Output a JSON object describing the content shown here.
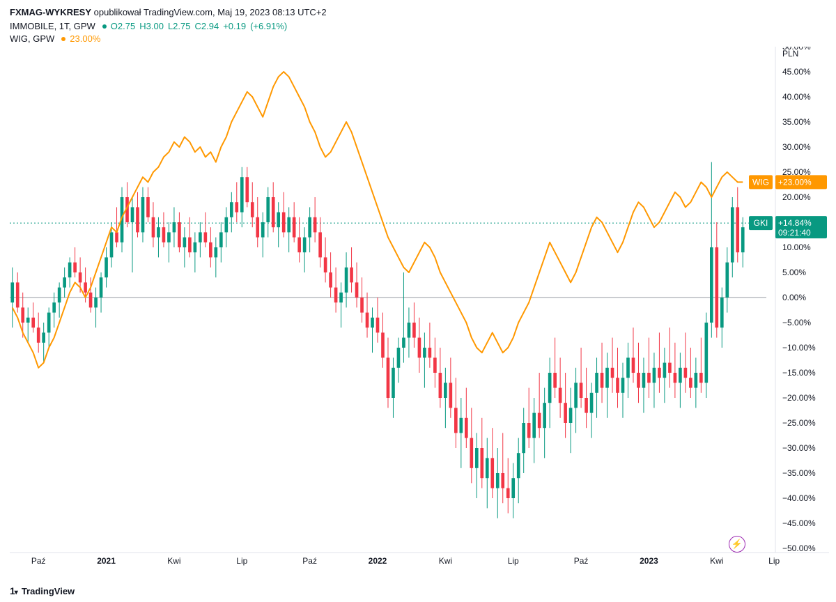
{
  "header": {
    "source": "FXMAG-WYKRESY",
    "published_label": "opublikował",
    "platform": "TradingView.com",
    "date": "Maj 19, 2023 08:13 UTC+2"
  },
  "legend": {
    "main": {
      "symbol": "IMMOBILE, 1T, GPW",
      "o_label": "O",
      "o": "2.75",
      "h_label": "H",
      "h": "3.00",
      "l_label": "L",
      "l": "2.75",
      "c_label": "C",
      "c": "2.94",
      "change": "+0.19",
      "change_pct": "(+6.91%)",
      "dot_color": "#089981"
    },
    "wig": {
      "symbol": "WIG, GPW",
      "value": "23.00%",
      "dot_color": "#ff9800"
    }
  },
  "y_axis": {
    "unit_label": "PLN",
    "min": -50,
    "max": 50,
    "step": 5,
    "ticks": [
      {
        "v": 50,
        "l": "50.00%"
      },
      {
        "v": 45,
        "l": "45.00%"
      },
      {
        "v": 40,
        "l": "40.00%"
      },
      {
        "v": 35,
        "l": "35.00%"
      },
      {
        "v": 30,
        "l": "30.00%"
      },
      {
        "v": 25,
        "l": "25.00%"
      },
      {
        "v": 20,
        "l": "20.00%"
      },
      {
        "v": 15,
        "l": "15.00%"
      },
      {
        "v": 10,
        "l": "10.00%"
      },
      {
        "v": 5,
        "l": "5.00%"
      },
      {
        "v": 0,
        "l": "0.00%"
      },
      {
        "v": -5,
        "l": "−5.00%"
      },
      {
        "v": -10,
        "l": "−10.00%"
      },
      {
        "v": -15,
        "l": "−15.00%"
      },
      {
        "v": -20,
        "l": "−20.00%"
      },
      {
        "v": -25,
        "l": "−25.00%"
      },
      {
        "v": -30,
        "l": "−30.00%"
      },
      {
        "v": -35,
        "l": "−35.00%"
      },
      {
        "v": -40,
        "l": "−40.00%"
      },
      {
        "v": -45,
        "l": "−45.00%"
      },
      {
        "v": -50,
        "l": "−50.00%"
      }
    ]
  },
  "x_axis": {
    "labels": [
      {
        "i": 5,
        "l": "Paź",
        "bold": false
      },
      {
        "i": 18,
        "l": "2021",
        "bold": true
      },
      {
        "i": 31,
        "l": "Kwi",
        "bold": false
      },
      {
        "i": 44,
        "l": "Lip",
        "bold": false
      },
      {
        "i": 57,
        "l": "Paź",
        "bold": false
      },
      {
        "i": 70,
        "l": "2022",
        "bold": true
      },
      {
        "i": 83,
        "l": "Kwi",
        "bold": false
      },
      {
        "i": 96,
        "l": "Lip",
        "bold": false
      },
      {
        "i": 109,
        "l": "Paź",
        "bold": false
      },
      {
        "i": 122,
        "l": "2023",
        "bold": true
      },
      {
        "i": 135,
        "l": "Kwi",
        "bold": false
      },
      {
        "i": 146,
        "l": "Lip",
        "bold": false
      }
    ]
  },
  "price_tags": {
    "wig": {
      "label": "WIG",
      "value": "+23.00%",
      "y": 23,
      "bg": "#ff9800"
    },
    "gki": {
      "label": "GKI",
      "value": "+14.84%",
      "sub": "09:21:40",
      "y": 14.84,
      "bg": "#089981"
    }
  },
  "dotted_line_y": 14.84,
  "zero_line_color": "#9598a1",
  "grid_color": "#f0f3fa",
  "colors": {
    "up": "#089981",
    "down": "#f23645",
    "wig": "#ff9800",
    "bg": "#ffffff"
  },
  "candles": [
    {
      "o": -1,
      "h": 6,
      "l": -6,
      "c": 3
    },
    {
      "o": 3,
      "h": 5,
      "l": -3,
      "c": -2
    },
    {
      "o": -2,
      "h": 1,
      "l": -8,
      "c": -5
    },
    {
      "o": -5,
      "h": -2,
      "l": -9,
      "c": -4
    },
    {
      "o": -4,
      "h": -1,
      "l": -7,
      "c": -6
    },
    {
      "o": -6,
      "h": -3,
      "l": -11,
      "c": -9
    },
    {
      "o": -9,
      "h": -5,
      "l": -13,
      "c": -7
    },
    {
      "o": -7,
      "h": -2,
      "l": -10,
      "c": -3
    },
    {
      "o": -3,
      "h": 1,
      "l": -6,
      "c": -1
    },
    {
      "o": -1,
      "h": 3,
      "l": -4,
      "c": 2
    },
    {
      "o": 2,
      "h": 6,
      "l": 0,
      "c": 4
    },
    {
      "o": 4,
      "h": 8,
      "l": 2,
      "c": 7
    },
    {
      "o": 7,
      "h": 10,
      "l": 4,
      "c": 5
    },
    {
      "o": 5,
      "h": 8,
      "l": 1,
      "c": 3
    },
    {
      "o": 3,
      "h": 6,
      "l": -1,
      "c": 1
    },
    {
      "o": 1,
      "h": 4,
      "l": -3,
      "c": -2
    },
    {
      "o": -2,
      "h": 2,
      "l": -6,
      "c": 0
    },
    {
      "o": 0,
      "h": 5,
      "l": -3,
      "c": 4
    },
    {
      "o": 4,
      "h": 10,
      "l": 2,
      "c": 8
    },
    {
      "o": 8,
      "h": 15,
      "l": 6,
      "c": 13
    },
    {
      "o": 13,
      "h": 18,
      "l": 10,
      "c": 11
    },
    {
      "o": 11,
      "h": 22,
      "l": 9,
      "c": 20
    },
    {
      "o": 20,
      "h": 23,
      "l": 14,
      "c": 15
    },
    {
      "o": 15,
      "h": 20,
      "l": 5,
      "c": 18
    },
    {
      "o": 18,
      "h": 21,
      "l": 12,
      "c": 13
    },
    {
      "o": 13,
      "h": 22,
      "l": 11,
      "c": 20
    },
    {
      "o": 20,
      "h": 22,
      "l": 15,
      "c": 16
    },
    {
      "o": 16,
      "h": 19,
      "l": 10,
      "c": 12
    },
    {
      "o": 12,
      "h": 16,
      "l": 8,
      "c": 14
    },
    {
      "o": 14,
      "h": 17,
      "l": 10,
      "c": 11
    },
    {
      "o": 11,
      "h": 15,
      "l": 7,
      "c": 13
    },
    {
      "o": 13,
      "h": 18,
      "l": 10,
      "c": 15
    },
    {
      "o": 15,
      "h": 17,
      "l": 9,
      "c": 10
    },
    {
      "o": 10,
      "h": 14,
      "l": 6,
      "c": 12
    },
    {
      "o": 12,
      "h": 16,
      "l": 8,
      "c": 9
    },
    {
      "o": 9,
      "h": 13,
      "l": 5,
      "c": 11
    },
    {
      "o": 11,
      "h": 15,
      "l": 8,
      "c": 13
    },
    {
      "o": 13,
      "h": 17,
      "l": 10,
      "c": 11
    },
    {
      "o": 11,
      "h": 14,
      "l": 6,
      "c": 8
    },
    {
      "o": 8,
      "h": 12,
      "l": 4,
      "c": 10
    },
    {
      "o": 10,
      "h": 15,
      "l": 7,
      "c": 13
    },
    {
      "o": 13,
      "h": 18,
      "l": 10,
      "c": 16
    },
    {
      "o": 16,
      "h": 21,
      "l": 13,
      "c": 19
    },
    {
      "o": 19,
      "h": 23,
      "l": 15,
      "c": 17
    },
    {
      "o": 17,
      "h": 26,
      "l": 14,
      "c": 24
    },
    {
      "o": 24,
      "h": 26,
      "l": 18,
      "c": 19
    },
    {
      "o": 19,
      "h": 23,
      "l": 14,
      "c": 16
    },
    {
      "o": 16,
      "h": 20,
      "l": 10,
      "c": 12
    },
    {
      "o": 12,
      "h": 17,
      "l": 8,
      "c": 15
    },
    {
      "o": 15,
      "h": 22,
      "l": 12,
      "c": 20
    },
    {
      "o": 20,
      "h": 23,
      "l": 13,
      "c": 14
    },
    {
      "o": 14,
      "h": 19,
      "l": 10,
      "c": 17
    },
    {
      "o": 17,
      "h": 21,
      "l": 12,
      "c": 13
    },
    {
      "o": 13,
      "h": 18,
      "l": 9,
      "c": 16
    },
    {
      "o": 16,
      "h": 19,
      "l": 11,
      "c": 12
    },
    {
      "o": 12,
      "h": 16,
      "l": 7,
      "c": 9
    },
    {
      "o": 9,
      "h": 14,
      "l": 5,
      "c": 12
    },
    {
      "o": 12,
      "h": 18,
      "l": 9,
      "c": 16
    },
    {
      "o": 16,
      "h": 20,
      "l": 11,
      "c": 13
    },
    {
      "o": 13,
      "h": 16,
      "l": 6,
      "c": 8
    },
    {
      "o": 8,
      "h": 12,
      "l": 3,
      "c": 5
    },
    {
      "o": 5,
      "h": 9,
      "l": 0,
      "c": 2
    },
    {
      "o": 2,
      "h": 6,
      "l": -3,
      "c": -1
    },
    {
      "o": -1,
      "h": 3,
      "l": -6,
      "c": 1
    },
    {
      "o": 1,
      "h": 9,
      "l": -2,
      "c": 6
    },
    {
      "o": 6,
      "h": 10,
      "l": 1,
      "c": 3
    },
    {
      "o": 3,
      "h": 7,
      "l": -2,
      "c": 0
    },
    {
      "o": 0,
      "h": 4,
      "l": -5,
      "c": -3
    },
    {
      "o": -3,
      "h": 1,
      "l": -8,
      "c": -6
    },
    {
      "o": -6,
      "h": -2,
      "l": -11,
      "c": -4
    },
    {
      "o": -4,
      "h": 0,
      "l": -9,
      "c": -7
    },
    {
      "o": -7,
      "h": -3,
      "l": -14,
      "c": -12
    },
    {
      "o": -12,
      "h": -8,
      "l": -22,
      "c": -20
    },
    {
      "o": -20,
      "h": -12,
      "l": -24,
      "c": -14
    },
    {
      "o": -14,
      "h": -8,
      "l": -17,
      "c": -10
    },
    {
      "o": -10,
      "h": 5,
      "l": -13,
      "c": -8
    },
    {
      "o": -8,
      "h": -2,
      "l": -12,
      "c": -5
    },
    {
      "o": -5,
      "h": -1,
      "l": -10,
      "c": -8
    },
    {
      "o": -8,
      "h": -4,
      "l": -15,
      "c": -12
    },
    {
      "o": -12,
      "h": -7,
      "l": -18,
      "c": -10
    },
    {
      "o": -10,
      "h": -5,
      "l": -14,
      "c": -12
    },
    {
      "o": -12,
      "h": -8,
      "l": -18,
      "c": -15
    },
    {
      "o": -15,
      "h": -10,
      "l": -22,
      "c": -20
    },
    {
      "o": -20,
      "h": -14,
      "l": -26,
      "c": -17
    },
    {
      "o": -17,
      "h": -12,
      "l": -24,
      "c": -22
    },
    {
      "o": -22,
      "h": -16,
      "l": -30,
      "c": -27
    },
    {
      "o": -27,
      "h": -20,
      "l": -34,
      "c": -24
    },
    {
      "o": -24,
      "h": -18,
      "l": -30,
      "c": -28
    },
    {
      "o": -28,
      "h": -22,
      "l": -37,
      "c": -34
    },
    {
      "o": -34,
      "h": -27,
      "l": -40,
      "c": -30
    },
    {
      "o": -30,
      "h": -24,
      "l": -38,
      "c": -36
    },
    {
      "o": -36,
      "h": -28,
      "l": -42,
      "c": -32
    },
    {
      "o": -32,
      "h": -26,
      "l": -40,
      "c": -38
    },
    {
      "o": -38,
      "h": -30,
      "l": -44,
      "c": -35
    },
    {
      "o": -35,
      "h": -27,
      "l": -41,
      "c": -38
    },
    {
      "o": -38,
      "h": -32,
      "l": -43,
      "c": -40
    },
    {
      "o": -40,
      "h": -33,
      "l": -44,
      "c": -36
    },
    {
      "o": -36,
      "h": -28,
      "l": -41,
      "c": -31
    },
    {
      "o": -31,
      "h": -22,
      "l": -35,
      "c": -25
    },
    {
      "o": -25,
      "h": -18,
      "l": -30,
      "c": -28
    },
    {
      "o": -28,
      "h": -20,
      "l": -33,
      "c": -23
    },
    {
      "o": -23,
      "h": -15,
      "l": -28,
      "c": -26
    },
    {
      "o": -26,
      "h": -18,
      "l": -32,
      "c": -21
    },
    {
      "o": -21,
      "h": -12,
      "l": -26,
      "c": -15
    },
    {
      "o": -15,
      "h": -8,
      "l": -20,
      "c": -18
    },
    {
      "o": -18,
      "h": -12,
      "l": -24,
      "c": -21
    },
    {
      "o": -21,
      "h": -15,
      "l": -28,
      "c": -25
    },
    {
      "o": -25,
      "h": -18,
      "l": -31,
      "c": -22
    },
    {
      "o": -22,
      "h": -14,
      "l": -27,
      "c": -17
    },
    {
      "o": -17,
      "h": -10,
      "l": -22,
      "c": -20
    },
    {
      "o": -20,
      "h": -14,
      "l": -26,
      "c": -23
    },
    {
      "o": -23,
      "h": -17,
      "l": -28,
      "c": -19
    },
    {
      "o": -19,
      "h": -12,
      "l": -24,
      "c": -15
    },
    {
      "o": -15,
      "h": -9,
      "l": -21,
      "c": -18
    },
    {
      "o": -18,
      "h": -11,
      "l": -24,
      "c": -14
    },
    {
      "o": -14,
      "h": -8,
      "l": -19,
      "c": -16
    },
    {
      "o": -16,
      "h": -10,
      "l": -22,
      "c": -19
    },
    {
      "o": -19,
      "h": -13,
      "l": -24,
      "c": -16
    },
    {
      "o": -16,
      "h": -9,
      "l": -20,
      "c": -12
    },
    {
      "o": -12,
      "h": -6,
      "l": -17,
      "c": -15
    },
    {
      "o": -15,
      "h": -9,
      "l": -21,
      "c": -18
    },
    {
      "o": -18,
      "h": -12,
      "l": -23,
      "c": -15
    },
    {
      "o": -15,
      "h": -8,
      "l": -20,
      "c": -17
    },
    {
      "o": -17,
      "h": -11,
      "l": -22,
      "c": -14
    },
    {
      "o": -14,
      "h": -7,
      "l": -19,
      "c": -16
    },
    {
      "o": -16,
      "h": -10,
      "l": -21,
      "c": -13
    },
    {
      "o": -13,
      "h": -6,
      "l": -18,
      "c": -15
    },
    {
      "o": -15,
      "h": -9,
      "l": -20,
      "c": -17
    },
    {
      "o": -17,
      "h": -11,
      "l": -22,
      "c": -14
    },
    {
      "o": -14,
      "h": -7,
      "l": -19,
      "c": -16
    },
    {
      "o": -16,
      "h": -10,
      "l": -20,
      "c": -18
    },
    {
      "o": -18,
      "h": -12,
      "l": -22,
      "c": -15
    },
    {
      "o": -15,
      "h": -8,
      "l": -19,
      "c": -17
    },
    {
      "o": -17,
      "h": -3,
      "l": -20,
      "c": -5
    },
    {
      "o": -5,
      "h": 27,
      "l": -8,
      "c": 10
    },
    {
      "o": 10,
      "h": 15,
      "l": -8,
      "c": -6
    },
    {
      "o": -6,
      "h": 2,
      "l": -10,
      "c": 0
    },
    {
      "o": 0,
      "h": 10,
      "l": -3,
      "c": 7
    },
    {
      "o": 7,
      "h": 20,
      "l": 4,
      "c": 18
    },
    {
      "o": 18,
      "h": 22,
      "l": 7,
      "c": 9
    },
    {
      "o": 9,
      "h": 16,
      "l": 6,
      "c": 14
    }
  ],
  "wig_line": [
    -2,
    -4,
    -7,
    -9,
    -11,
    -14,
    -13,
    -10,
    -8,
    -5,
    -2,
    1,
    3,
    2,
    0,
    2,
    5,
    8,
    11,
    14,
    13,
    16,
    18,
    20,
    22,
    24,
    23,
    25,
    26,
    28,
    29,
    31,
    30,
    32,
    31,
    29,
    30,
    28,
    29,
    27,
    30,
    32,
    35,
    37,
    39,
    41,
    40,
    38,
    36,
    39,
    42,
    44,
    45,
    44,
    42,
    40,
    38,
    35,
    33,
    30,
    28,
    29,
    31,
    33,
    35,
    33,
    30,
    27,
    24,
    21,
    18,
    15,
    12,
    10,
    8,
    6,
    5,
    7,
    9,
    11,
    10,
    8,
    5,
    3,
    1,
    -1,
    -3,
    -5,
    -8,
    -10,
    -11,
    -9,
    -7,
    -9,
    -11,
    -10,
    -8,
    -5,
    -3,
    -1,
    2,
    5,
    8,
    11,
    9,
    7,
    5,
    3,
    5,
    8,
    11,
    14,
    16,
    15,
    13,
    11,
    9,
    11,
    14,
    17,
    19,
    18,
    16,
    14,
    15,
    17,
    19,
    21,
    20,
    18,
    19,
    21,
    23,
    22,
    20,
    22,
    24,
    25,
    24,
    23,
    23
  ],
  "footer": {
    "brand": "TradingView"
  }
}
